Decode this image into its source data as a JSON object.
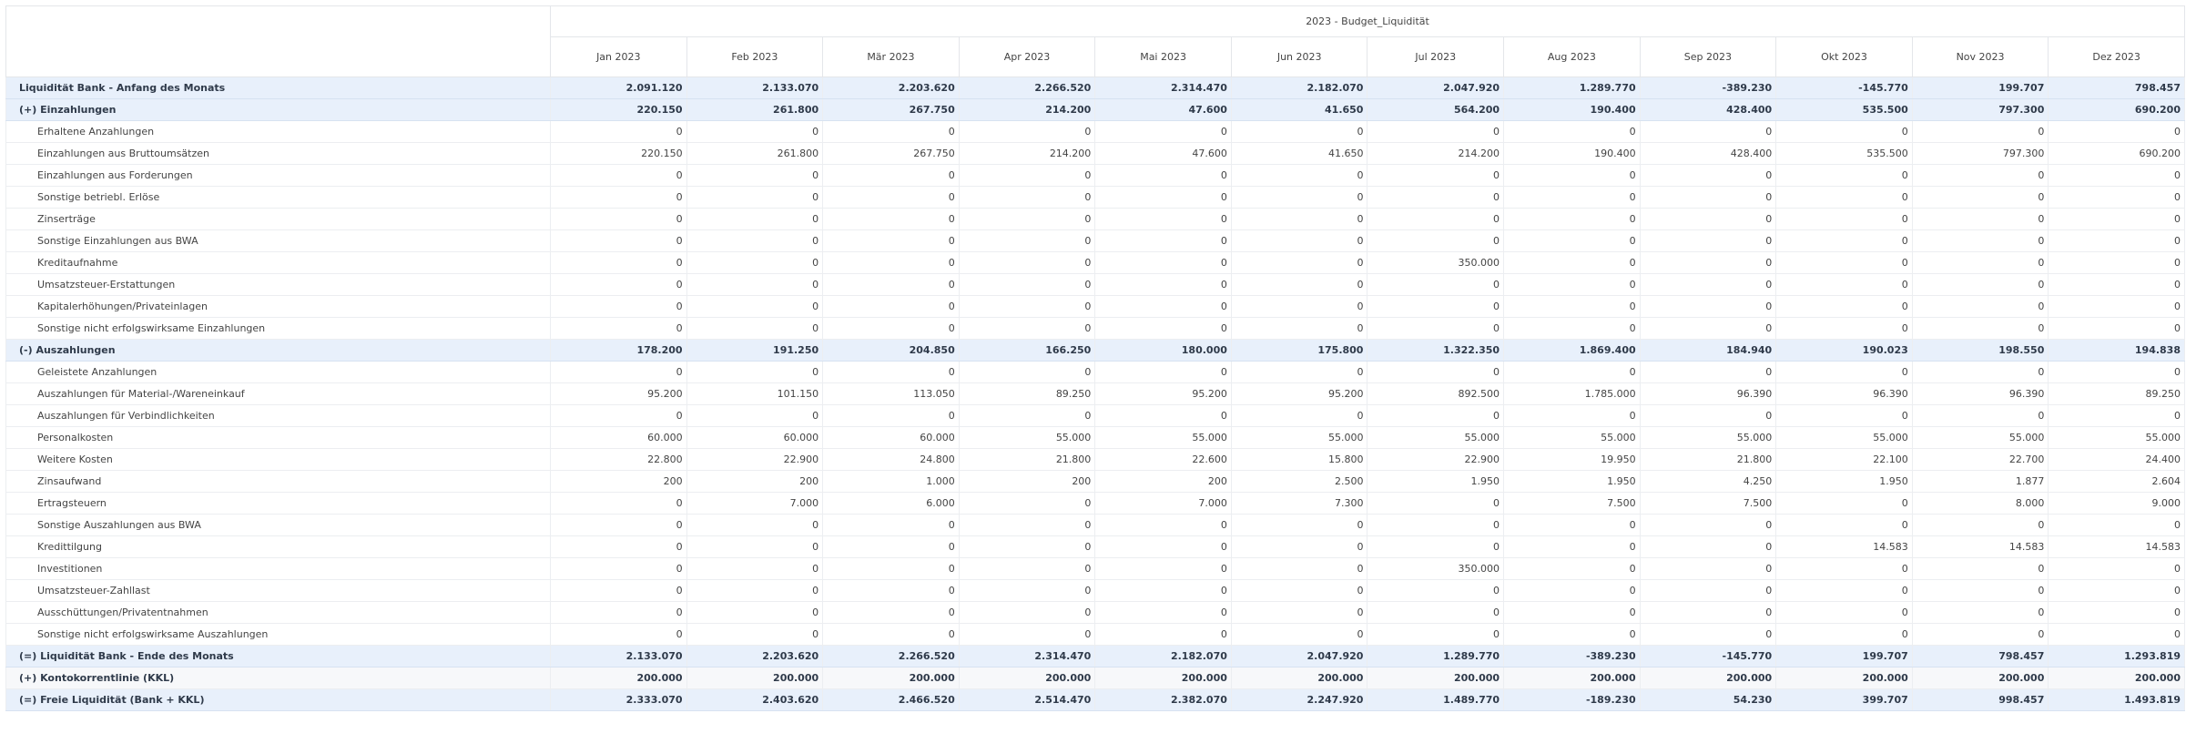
{
  "report": {
    "title": "2023 - Budget_Liquidität",
    "months": [
      "Jan 2023",
      "Feb 2023",
      "Mär 2023",
      "Apr 2023",
      "Mai 2023",
      "Jun 2023",
      "Jul 2023",
      "Aug 2023",
      "Sep 2023",
      "Okt 2023",
      "Nov 2023",
      "Dez 2023"
    ]
  },
  "rows": [
    {
      "label": "Liquidität Bank - Anfang des Monats",
      "kind": "sum",
      "values": [
        "2.091.120",
        "2.133.070",
        "2.203.620",
        "2.266.520",
        "2.314.470",
        "2.182.070",
        "2.047.920",
        "1.289.770",
        "-389.230",
        "-145.770",
        "199.707",
        "798.457"
      ]
    },
    {
      "label": "(+) Einzahlungen",
      "kind": "sum",
      "values": [
        "220.150",
        "261.800",
        "267.750",
        "214.200",
        "47.600",
        "41.650",
        "564.200",
        "190.400",
        "428.400",
        "535.500",
        "797.300",
        "690.200"
      ]
    },
    {
      "label": "Erhaltene Anzahlungen",
      "kind": "detail",
      "values": [
        "0",
        "0",
        "0",
        "0",
        "0",
        "0",
        "0",
        "0",
        "0",
        "0",
        "0",
        "0"
      ]
    },
    {
      "label": "Einzahlungen aus Bruttoumsätzen",
      "kind": "detail",
      "values": [
        "220.150",
        "261.800",
        "267.750",
        "214.200",
        "47.600",
        "41.650",
        "214.200",
        "190.400",
        "428.400",
        "535.500",
        "797.300",
        "690.200"
      ]
    },
    {
      "label": "Einzahlungen aus Forderungen",
      "kind": "detail",
      "values": [
        "0",
        "0",
        "0",
        "0",
        "0",
        "0",
        "0",
        "0",
        "0",
        "0",
        "0",
        "0"
      ]
    },
    {
      "label": "Sonstige betriebl. Erlöse",
      "kind": "detail",
      "values": [
        "0",
        "0",
        "0",
        "0",
        "0",
        "0",
        "0",
        "0",
        "0",
        "0",
        "0",
        "0"
      ]
    },
    {
      "label": "Zinserträge",
      "kind": "detail",
      "values": [
        "0",
        "0",
        "0",
        "0",
        "0",
        "0",
        "0",
        "0",
        "0",
        "0",
        "0",
        "0"
      ]
    },
    {
      "label": "Sonstige Einzahlungen aus BWA",
      "kind": "detail",
      "values": [
        "0",
        "0",
        "0",
        "0",
        "0",
        "0",
        "0",
        "0",
        "0",
        "0",
        "0",
        "0"
      ]
    },
    {
      "label": "Kreditaufnahme",
      "kind": "detail",
      "values": [
        "0",
        "0",
        "0",
        "0",
        "0",
        "0",
        "350.000",
        "0",
        "0",
        "0",
        "0",
        "0"
      ]
    },
    {
      "label": "Umsatzsteuer-Erstattungen",
      "kind": "detail",
      "values": [
        "0",
        "0",
        "0",
        "0",
        "0",
        "0",
        "0",
        "0",
        "0",
        "0",
        "0",
        "0"
      ]
    },
    {
      "label": "Kapitalerhöhungen/Privateinlagen",
      "kind": "detail",
      "values": [
        "0",
        "0",
        "0",
        "0",
        "0",
        "0",
        "0",
        "0",
        "0",
        "0",
        "0",
        "0"
      ]
    },
    {
      "label": "Sonstige nicht erfolgswirksame Einzahlungen",
      "kind": "detail",
      "values": [
        "0",
        "0",
        "0",
        "0",
        "0",
        "0",
        "0",
        "0",
        "0",
        "0",
        "0",
        "0"
      ]
    },
    {
      "label": "(-) Auszahlungen",
      "kind": "sum",
      "values": [
        "178.200",
        "191.250",
        "204.850",
        "166.250",
        "180.000",
        "175.800",
        "1.322.350",
        "1.869.400",
        "184.940",
        "190.023",
        "198.550",
        "194.838"
      ]
    },
    {
      "label": "Geleistete Anzahlungen",
      "kind": "detail",
      "values": [
        "0",
        "0",
        "0",
        "0",
        "0",
        "0",
        "0",
        "0",
        "0",
        "0",
        "0",
        "0"
      ]
    },
    {
      "label": "Auszahlungen für Material-/Wareneinkauf",
      "kind": "detail",
      "values": [
        "95.200",
        "101.150",
        "113.050",
        "89.250",
        "95.200",
        "95.200",
        "892.500",
        "1.785.000",
        "96.390",
        "96.390",
        "96.390",
        "89.250"
      ]
    },
    {
      "label": "Auszahlungen für Verbindlichkeiten",
      "kind": "detail",
      "values": [
        "0",
        "0",
        "0",
        "0",
        "0",
        "0",
        "0",
        "0",
        "0",
        "0",
        "0",
        "0"
      ]
    },
    {
      "label": "Personalkosten",
      "kind": "detail",
      "values": [
        "60.000",
        "60.000",
        "60.000",
        "55.000",
        "55.000",
        "55.000",
        "55.000",
        "55.000",
        "55.000",
        "55.000",
        "55.000",
        "55.000"
      ]
    },
    {
      "label": "Weitere Kosten",
      "kind": "detail",
      "values": [
        "22.800",
        "22.900",
        "24.800",
        "21.800",
        "22.600",
        "15.800",
        "22.900",
        "19.950",
        "21.800",
        "22.100",
        "22.700",
        "24.400"
      ]
    },
    {
      "label": "Zinsaufwand",
      "kind": "detail",
      "values": [
        "200",
        "200",
        "1.000",
        "200",
        "200",
        "2.500",
        "1.950",
        "1.950",
        "4.250",
        "1.950",
        "1.877",
        "2.604"
      ]
    },
    {
      "label": "Ertragsteuern",
      "kind": "detail",
      "values": [
        "0",
        "7.000",
        "6.000",
        "0",
        "7.000",
        "7.300",
        "0",
        "7.500",
        "7.500",
        "0",
        "8.000",
        "9.000"
      ]
    },
    {
      "label": "Sonstige Auszahlungen aus BWA",
      "kind": "detail",
      "values": [
        "0",
        "0",
        "0",
        "0",
        "0",
        "0",
        "0",
        "0",
        "0",
        "0",
        "0",
        "0"
      ]
    },
    {
      "label": "Kredittilgung",
      "kind": "detail",
      "values": [
        "0",
        "0",
        "0",
        "0",
        "0",
        "0",
        "0",
        "0",
        "0",
        "14.583",
        "14.583",
        "14.583"
      ]
    },
    {
      "label": "Investitionen",
      "kind": "detail",
      "values": [
        "0",
        "0",
        "0",
        "0",
        "0",
        "0",
        "350.000",
        "0",
        "0",
        "0",
        "0",
        "0"
      ]
    },
    {
      "label": "Umsatzsteuer-Zahllast",
      "kind": "detail",
      "values": [
        "0",
        "0",
        "0",
        "0",
        "0",
        "0",
        "0",
        "0",
        "0",
        "0",
        "0",
        "0"
      ]
    },
    {
      "label": "Ausschüttungen/Privatentnahmen",
      "kind": "detail",
      "values": [
        "0",
        "0",
        "0",
        "0",
        "0",
        "0",
        "0",
        "0",
        "0",
        "0",
        "0",
        "0"
      ]
    },
    {
      "label": "Sonstige nicht erfolgswirksame Auszahlungen",
      "kind": "detail",
      "values": [
        "0",
        "0",
        "0",
        "0",
        "0",
        "0",
        "0",
        "0",
        "0",
        "0",
        "0",
        "0"
      ]
    },
    {
      "label": "(=) Liquidität Bank - Ende des Monats",
      "kind": "sum",
      "values": [
        "2.133.070",
        "2.203.620",
        "2.266.520",
        "2.314.470",
        "2.182.070",
        "2.047.920",
        "1.289.770",
        "-389.230",
        "-145.770",
        "199.707",
        "798.457",
        "1.293.819"
      ]
    },
    {
      "label": "(+) Kontokorrentlinie (KKL)",
      "kind": "alt",
      "values": [
        "200.000",
        "200.000",
        "200.000",
        "200.000",
        "200.000",
        "200.000",
        "200.000",
        "200.000",
        "200.000",
        "200.000",
        "200.000",
        "200.000"
      ]
    },
    {
      "label": "(=) Freie Liquidität (Bank + KKL)",
      "kind": "sum",
      "values": [
        "2.333.070",
        "2.403.620",
        "2.466.520",
        "2.514.470",
        "2.382.070",
        "2.247.920",
        "1.489.770",
        "-189.230",
        "54.230",
        "399.707",
        "998.457",
        "1.493.819"
      ]
    }
  ]
}
